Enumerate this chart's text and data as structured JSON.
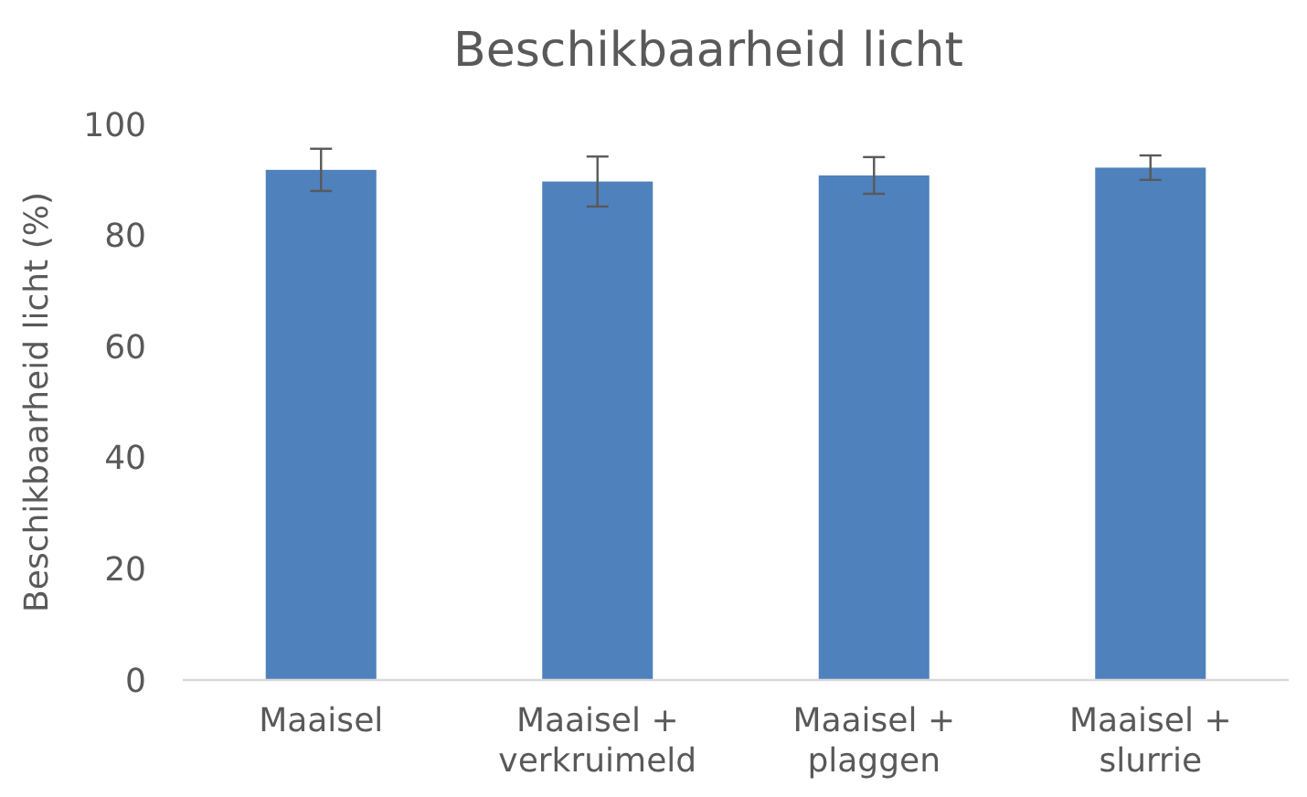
{
  "chart_data": {
    "type": "bar",
    "title": "Beschikbaarheid licht",
    "ylabel": "Beschikbaarheid licht (%)",
    "categories": [
      "Maaisel",
      "Maaisel + verkruimeld",
      "Maaisel + plaggen",
      "Maaisel + slurrie"
    ],
    "values": [
      91.8,
      89.7,
      90.8,
      92.2
    ],
    "errors": [
      3.8,
      4.5,
      3.3,
      2.2
    ],
    "color": "#4f81bd",
    "ylim": [
      0,
      100
    ],
    "yticks": [
      0,
      20,
      40,
      60,
      80,
      100
    ],
    "grid": false
  }
}
